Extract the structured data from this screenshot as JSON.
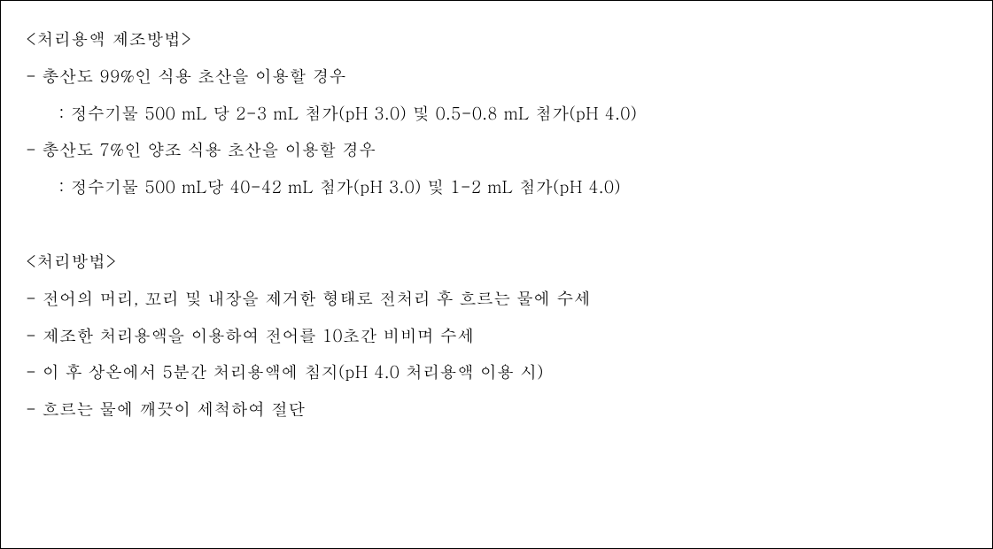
{
  "document": {
    "text_color": "#000000",
    "background_color": "#ffffff",
    "border_color": "#000000",
    "font_size": 19,
    "line_height": 2.2,
    "section1": {
      "title": "<처리용액 제조방법>",
      "items": [
        {
          "main": "- 총산도 99%인 식용 초산을 이용할 경우",
          "sub": "  : 정수기물 500 mL 당 2-3 mL 첨가(pH 3.0) 및 0.5-0.8 mL 첨가(pH 4.0)"
        },
        {
          "main": "- 총산도 7%인 양조 식용 초산을 이용할 경우",
          "sub": "  : 정수기물 500 mL당 40-42 mL 첨가(pH 3.0) 및 1-2 mL 첨가(pH 4.0)"
        }
      ]
    },
    "section2": {
      "title": "<처리방법>",
      "items": [
        "- 전어의 머리, 꼬리 및 내장을 제거한 형태로 전처리 후 흐르는 물에 수세",
        "- 제조한 처리용액을 이용하여 전어를 10초간 비비며 수세",
        "- 이 후 상온에서 5분간 처리용액에 침지(pH 4.0 처리용액 이용 시)",
        "- 흐르는 물에 깨끗이 세척하여 절단"
      ]
    }
  }
}
